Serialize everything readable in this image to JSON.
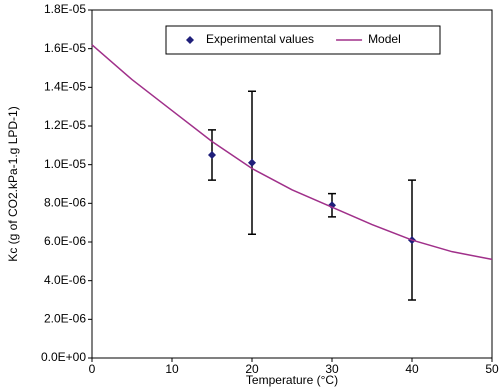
{
  "chart_data": {
    "type": "scatter",
    "xlabel": "Temperature  (°C)",
    "ylabel": "Kc (g of CO2.kPa-1.g LPD-1)",
    "xlim": [
      0,
      50
    ],
    "xticks": [
      0,
      10,
      20,
      30,
      40,
      50
    ],
    "ylim": [
      0,
      1.8e-05
    ],
    "yticks": [
      {
        "value": 0,
        "label": "0.0E+00"
      },
      {
        "value": 2e-06,
        "label": "2.0E-06"
      },
      {
        "value": 4e-06,
        "label": "4.0E-06"
      },
      {
        "value": 6e-06,
        "label": "6.0E-06"
      },
      {
        "value": 8e-06,
        "label": "8.0E-06"
      },
      {
        "value": 1e-05,
        "label": "1.0E-05"
      },
      {
        "value": 1.2e-05,
        "label": "1.2E-05"
      },
      {
        "value": 1.4e-05,
        "label": "1.4E-05"
      },
      {
        "value": 1.6e-05,
        "label": "1.6E-05"
      },
      {
        "value": 1.8e-05,
        "label": "1.8E-05"
      }
    ],
    "legend": "top",
    "series": [
      {
        "name": "Experimental values",
        "type": "scatter",
        "color": "#1f1f7a",
        "x": [
          15,
          20,
          30,
          40
        ],
        "values": [
          1.05e-05,
          1.01e-05,
          7.9e-06,
          6.1e-06
        ],
        "errors": [
          1.3e-06,
          3.7e-06,
          6e-07,
          3.1e-06
        ]
      },
      {
        "name": "Model",
        "type": "line",
        "color": "#a0308a",
        "x": [
          0,
          5,
          10,
          15,
          20,
          25,
          30,
          35,
          40,
          45,
          50
        ],
        "values": [
          1.62e-05,
          1.44e-05,
          1.28e-05,
          1.12e-05,
          9.8e-06,
          8.7e-06,
          7.8e-06,
          6.9e-06,
          6.1e-06,
          5.5e-06,
          5.1e-06
        ]
      }
    ]
  }
}
